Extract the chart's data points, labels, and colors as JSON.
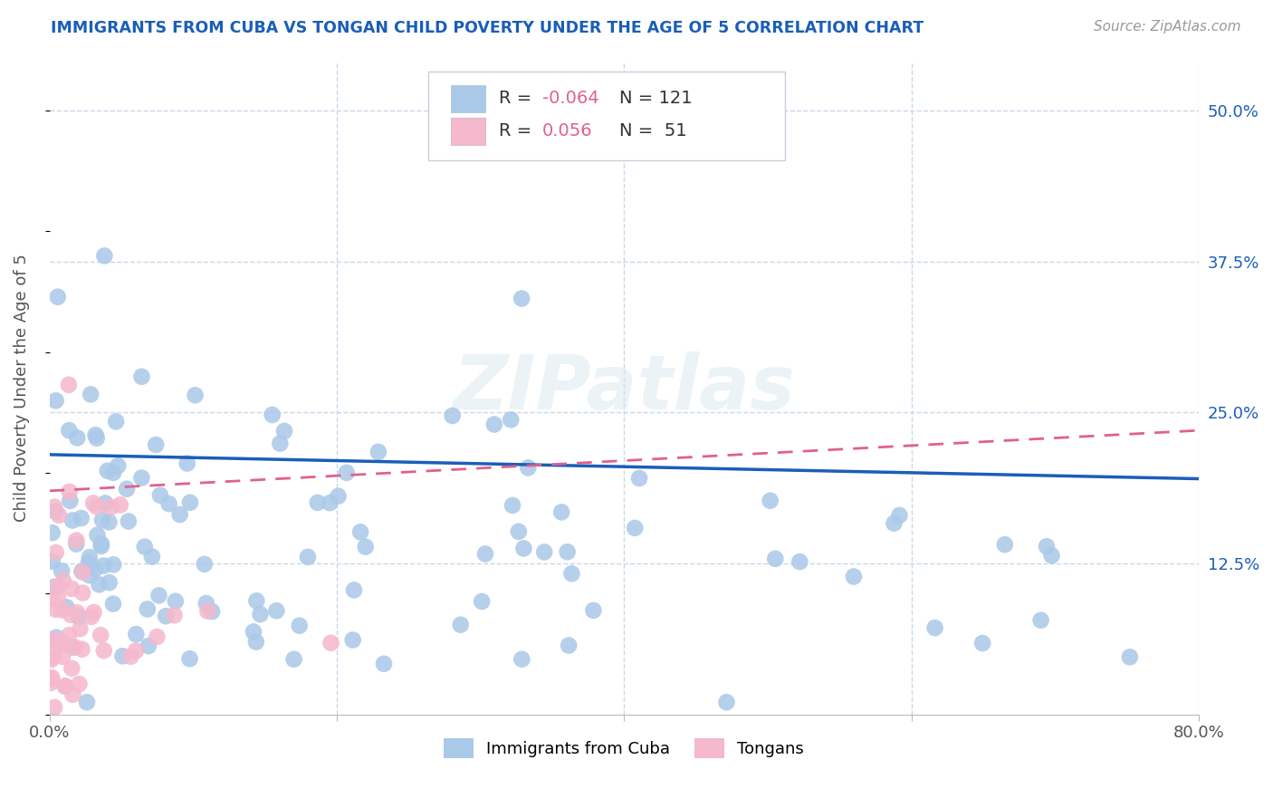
{
  "title": "IMMIGRANTS FROM CUBA VS TONGAN CHILD POVERTY UNDER THE AGE OF 5 CORRELATION CHART",
  "source": "Source: ZipAtlas.com",
  "ylabel": "Child Poverty Under the Age of 5",
  "xlim": [
    0.0,
    0.8
  ],
  "ylim": [
    0.0,
    0.54
  ],
  "xticks": [
    0.0,
    0.2,
    0.4,
    0.6,
    0.8
  ],
  "xticklabels": [
    "0.0%",
    "",
    "",
    "",
    "80.0%"
  ],
  "yticks": [
    0.125,
    0.25,
    0.375,
    0.5
  ],
  "yticklabels": [
    "12.5%",
    "25.0%",
    "37.5%",
    "50.0%"
  ],
  "legend_labels": [
    "Immigrants from Cuba",
    "Tongans"
  ],
  "cuba_R": "-0.064",
  "cuba_N": "121",
  "tongan_R": "0.056",
  "tongan_N": "51",
  "blue_dot_color": "#aac8e8",
  "pink_dot_color": "#f5b8cc",
  "blue_line_color": "#1a5eb8",
  "pink_line_color": "#e06090",
  "watermark": "ZIPatlas",
  "background_color": "#ffffff",
  "grid_color": "#c8d8ea",
  "title_color": "#1a5eb8",
  "axis_label_color": "#555555",
  "tick_label_color": "#1a5eb8",
  "source_color": "#999999",
  "legend_box_color": "#e8e8f0"
}
